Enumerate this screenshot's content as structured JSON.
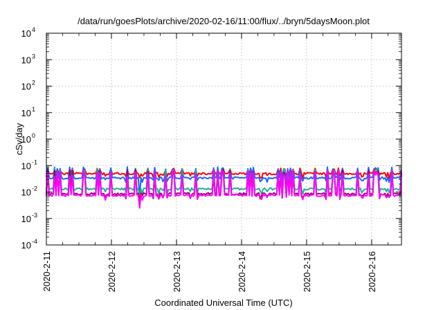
{
  "chart_data": {
    "type": "line",
    "title": "/data/run/goesPlots/archive/2020-02-16/11:00/flux/../bryn/5daysMoon.plot",
    "xlabel": "Coordinated Universal Time (UTC)",
    "ylabel": "cSv/day",
    "yscale": "log",
    "ylim": [
      0.0001,
      10000
    ],
    "y_ticks": [
      {
        "value": 0.0001,
        "base": "10",
        "exp": "-4"
      },
      {
        "value": 0.001,
        "base": "10",
        "exp": "-3"
      },
      {
        "value": 0.01,
        "base": "10",
        "exp": "-2"
      },
      {
        "value": 0.1,
        "base": "10",
        "exp": "-1"
      },
      {
        "value": 1,
        "base": "10",
        "exp": "0"
      },
      {
        "value": 10,
        "base": "10",
        "exp": "1"
      },
      {
        "value": 100,
        "base": "10",
        "exp": "2"
      },
      {
        "value": 1000,
        "base": "10",
        "exp": "3"
      },
      {
        "value": 10000,
        "base": "10",
        "exp": "4"
      }
    ],
    "x_range": [
      "2020-02-11 00:00",
      "2020-02-16 11:00"
    ],
    "x_ticks": [
      "2020-2-11",
      "2020-2-12",
      "2020-2-13",
      "2020-2-14",
      "2020-2-15",
      "2020-2-16"
    ],
    "grid": true,
    "legend": "none",
    "series_colors": [
      "#ff0000",
      "#1a66ff",
      "#20b090",
      "#990066",
      "#ff00ff"
    ],
    "series": [
      {
        "color": "#ff0000",
        "baseline": 0.05,
        "spike_peak": 0.08,
        "dip_min": 0.035
      },
      {
        "color": "#1a66ff",
        "baseline": 0.034,
        "spike_peak": 0.09,
        "dip_min": 0.007
      },
      {
        "color": "#20b090",
        "baseline": 0.013,
        "spike_peak": 0.08,
        "dip_min": 0.007
      },
      {
        "color": "#990066",
        "baseline": 0.0085,
        "spike_peak": 0.07,
        "dip_min": 0.005
      },
      {
        "color": "#ff00ff",
        "baseline": 0.0075,
        "spike_peak": 0.07,
        "dip_min": 0.0025
      }
    ]
  }
}
